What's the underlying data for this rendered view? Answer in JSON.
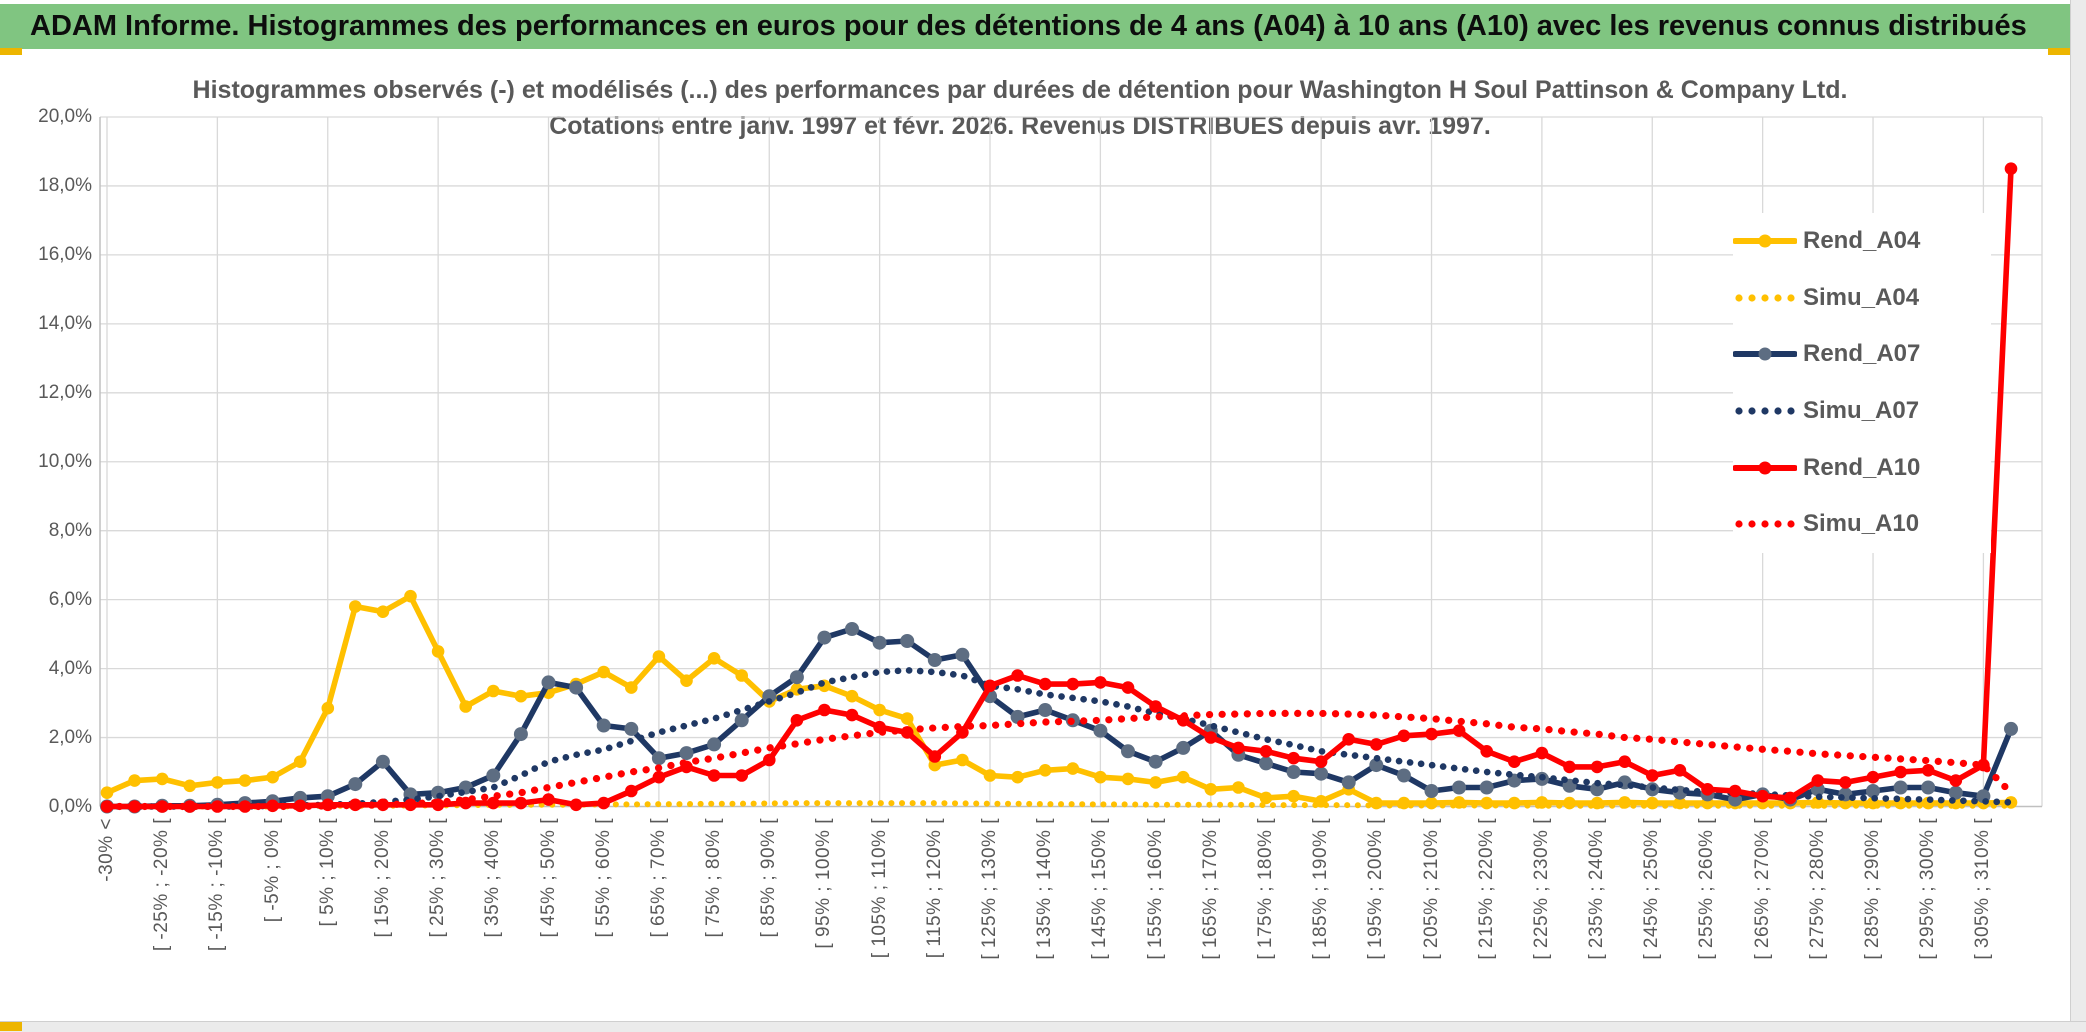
{
  "header": {
    "title": "ADAM Informe. Histogrammes des performances en euros pour des détentions de 4 ans (A04) à 10 ans (A10) avec les revenus connus distribués",
    "bg_color": "#80C581"
  },
  "chart": {
    "title_line1": "Histogrammes observés (-) et modélisés (...) des performances par durées de détention pour Washington H Soul Pattinson & Company Ltd.",
    "title_line2": "Cotations entre janv. 1997 et févr. 2026. Revenus DISTRIBUES depuis avr. 1997."
  },
  "colors": {
    "gold": "#FFC000",
    "navy": "#1F3864",
    "navy_marker": "#5D6D82",
    "red": "#FF0000",
    "text_gray": "#595959",
    "gridline": "#D9D9D9",
    "axis_line": "#C0C0C0",
    "accent_gold": "#EDB500"
  },
  "chart_data": {
    "type": "line",
    "title": "Histogrammes observés (-) et modélisés (...) des performances par durées de détention pour Washington H Soul Pattinson & Company Ltd.",
    "subtitle": "Cotations entre janv. 1997 et févr. 2026. Revenus DISTRIBUES depuis avr. 1997.",
    "ylabel": "",
    "ylim": [
      0,
      20
    ],
    "y_tick_step": 2,
    "y_tick_labels": [
      "0,0%",
      "2,0%",
      "4,0%",
      "6,0%",
      "8,0%",
      "10,0%",
      "12,0%",
      "14,0%",
      "16,0%",
      "18,0%",
      "20,0%"
    ],
    "grid": "on",
    "legend_position": "inside-top-right",
    "n_bins": 70,
    "x_label_note": "35 labels placed on every second bin (bins 0,2,...,68); values are 5%-wide return buckets; last bin (69) is the unlabeled >=310% bucket",
    "x_labels": [
      "-30% <",
      "[ -25% ; -20% [",
      "[ -15% ; -10% [",
      "[ -5% ; 0% [",
      "[ 5% ; 10% [",
      "[ 15% ; 20% [",
      "[ 25% ; 30% [",
      "[ 35% ; 40% [",
      "[ 45% ; 50% [",
      "[ 55% ; 60% [",
      "[ 65% ; 70% [",
      "[ 75% ; 80% [",
      "[ 85% ; 90% [",
      "[ 95% ; 100% [",
      "[ 105% ; 110% [",
      "[ 115% ; 120% [",
      "[ 125% ; 130% [",
      "[ 135% ; 140% [",
      "[ 145% ; 150% [",
      "[ 155% ; 160% [",
      "[ 165% ; 170% [",
      "[ 175% ; 180% [",
      "[ 185% ; 190% [",
      "[ 195% ; 200% [",
      "[ 205% ; 210% [",
      "[ 215% ; 220% [",
      "[ 225% ; 230% [",
      "[ 235% ; 240% [",
      "[ 245% ; 250% [",
      "[ 255% ; 260% [",
      "[ 265% ; 270% [",
      "[ 275% ; 280% [",
      "[ 285% ; 290% [",
      "[ 295% ; 300% [",
      "[ 305% ; 310% ["
    ],
    "series": [
      {
        "name": "Rend_A04",
        "color": "#FFC000",
        "line": "solid",
        "marker_color": "#FFC000",
        "values": [
          0.4,
          0.75,
          0.8,
          0.6,
          0.7,
          0.75,
          0.85,
          1.3,
          2.85,
          5.8,
          5.65,
          6.1,
          4.5,
          2.9,
          3.35,
          3.2,
          3.3,
          3.55,
          3.9,
          3.45,
          4.35,
          3.65,
          4.3,
          3.8,
          3.05,
          3.4,
          3.5,
          3.2,
          2.8,
          2.55,
          1.2,
          1.35,
          0.9,
          0.85,
          1.05,
          1.1,
          0.85,
          0.8,
          0.7,
          0.85,
          0.5,
          0.55,
          0.25,
          0.3,
          0.15,
          0.5,
          0.1,
          0.1,
          0.1,
          0.12,
          0.1,
          0.1,
          0.12,
          0.1,
          0.1,
          0.12,
          0.1,
          0.1,
          0.1,
          0.1,
          0.1,
          0.1,
          0.12,
          0.1,
          0.1,
          0.1,
          0.1,
          0.1,
          0.1,
          0.12
        ]
      },
      {
        "name": "Simu_A04",
        "color": "#FFC000",
        "line": "dotted",
        "values": [
          0,
          0,
          0,
          0,
          0,
          0,
          0,
          0.01,
          0.02,
          0.02,
          0.02,
          0.03,
          0.03,
          0.04,
          0.05,
          0.05,
          0.05,
          0.05,
          0.06,
          0.06,
          0.07,
          0.07,
          0.08,
          0.08,
          0.09,
          0.1,
          0.1,
          0.1,
          0.1,
          0.1,
          0.1,
          0.09,
          0.08,
          0.08,
          0.07,
          0.07,
          0.06,
          0.06,
          0.05,
          0.05,
          0.05,
          0.05,
          0.04,
          0.04,
          0.04,
          0.04,
          0.03,
          0.03,
          0.03,
          0.03,
          0.03,
          0.03,
          0.02,
          0.02,
          0.02,
          0.02,
          0.02,
          0.02,
          0.02,
          0.02,
          0.02,
          0.02,
          0.02,
          0.02,
          0.02,
          0.02,
          0.02,
          0.02,
          0.02,
          0.02
        ]
      },
      {
        "name": "Rend_A07",
        "color": "#1F3864",
        "line": "solid",
        "marker_color": "#5D6D82",
        "values": [
          0,
          0,
          0.02,
          0.02,
          0.05,
          0.1,
          0.15,
          0.25,
          0.3,
          0.65,
          1.3,
          0.35,
          0.4,
          0.55,
          0.9,
          2.1,
          3.6,
          3.45,
          2.35,
          2.25,
          1.4,
          1.55,
          1.8,
          2.5,
          3.2,
          3.75,
          4.9,
          5.15,
          4.75,
          4.8,
          4.25,
          4.4,
          3.2,
          2.6,
          2.8,
          2.5,
          2.2,
          1.6,
          1.3,
          1.7,
          2.2,
          1.5,
          1.25,
          1.0,
          0.95,
          0.7,
          1.2,
          0.9,
          0.45,
          0.55,
          0.55,
          0.75,
          0.8,
          0.6,
          0.5,
          0.7,
          0.5,
          0.4,
          0.35,
          0.2,
          0.35,
          0.2,
          0.5,
          0.35,
          0.45,
          0.55,
          0.55,
          0.4,
          0.3,
          2.25
        ]
      },
      {
        "name": "Simu_A07",
        "color": "#1F3864",
        "line": "dotted",
        "values": [
          0,
          0,
          0,
          0,
          0,
          0,
          0.02,
          0.03,
          0.05,
          0.08,
          0.13,
          0.2,
          0.3,
          0.42,
          0.55,
          0.9,
          1.3,
          1.5,
          1.65,
          1.9,
          2.15,
          2.35,
          2.55,
          2.8,
          3.05,
          3.3,
          3.6,
          3.75,
          3.9,
          3.95,
          3.9,
          3.8,
          3.5,
          3.4,
          3.25,
          3.15,
          3.05,
          2.9,
          2.7,
          2.55,
          2.35,
          2.15,
          1.95,
          1.78,
          1.6,
          1.5,
          1.4,
          1.3,
          1.2,
          1.1,
          1.0,
          0.92,
          0.85,
          0.76,
          0.68,
          0.62,
          0.55,
          0.48,
          0.42,
          0.4,
          0.36,
          0.32,
          0.28,
          0.26,
          0.24,
          0.22,
          0.2,
          0.17,
          0.15,
          0.12
        ]
      },
      {
        "name": "Rend_A10",
        "color": "#FF0000",
        "line": "solid",
        "marker_color": "#FF0000",
        "values": [
          0,
          0,
          0,
          0,
          0,
          0,
          0.02,
          0.02,
          0.05,
          0.05,
          0.05,
          0.05,
          0.05,
          0.1,
          0.1,
          0.1,
          0.2,
          0.05,
          0.1,
          0.45,
          0.85,
          1.15,
          0.9,
          0.9,
          1.35,
          2.5,
          2.8,
          2.65,
          2.3,
          2.15,
          1.45,
          2.15,
          3.5,
          3.8,
          3.55,
          3.55,
          3.6,
          3.45,
          2.9,
          2.5,
          2.0,
          1.7,
          1.6,
          1.4,
          1.3,
          1.95,
          1.8,
          2.05,
          2.1,
          2.2,
          1.6,
          1.3,
          1.55,
          1.15,
          1.15,
          1.3,
          0.9,
          1.05,
          0.5,
          0.45,
          0.3,
          0.25,
          0.75,
          0.7,
          0.85,
          1.0,
          1.05,
          0.75,
          1.2,
          18.5
        ]
      },
      {
        "name": "Simu_A10",
        "color": "#FF0000",
        "line": "dotted",
        "values": [
          0,
          0,
          0,
          0,
          0,
          0,
          0,
          0,
          0.02,
          0.03,
          0.05,
          0.08,
          0.12,
          0.2,
          0.3,
          0.4,
          0.55,
          0.7,
          0.85,
          1.0,
          1.12,
          1.28,
          1.4,
          1.55,
          1.7,
          1.82,
          1.95,
          2.05,
          2.15,
          2.22,
          2.28,
          2.32,
          2.35,
          2.4,
          2.45,
          2.47,
          2.5,
          2.55,
          2.6,
          2.63,
          2.67,
          2.68,
          2.7,
          2.7,
          2.7,
          2.68,
          2.65,
          2.6,
          2.55,
          2.47,
          2.4,
          2.3,
          2.25,
          2.17,
          2.1,
          2.0,
          1.95,
          1.87,
          1.8,
          1.73,
          1.66,
          1.6,
          1.53,
          1.48,
          1.43,
          1.38,
          1.33,
          1.27,
          1.2,
          0.4
        ]
      }
    ]
  }
}
